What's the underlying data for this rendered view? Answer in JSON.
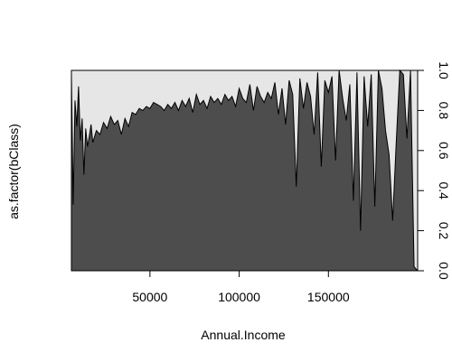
{
  "chart_data": {
    "type": "area",
    "title": "",
    "xlabel": "Annual.Income",
    "ylabel": "as.factor(bClass)",
    "xlim": [
      6000,
      200000
    ],
    "ylim": [
      0,
      1
    ],
    "x_ticks": [
      50000,
      100000,
      150000
    ],
    "x_tick_labels": [
      "50000",
      "100000",
      "150000"
    ],
    "y_ticks": [
      0,
      0.2,
      0.4,
      0.6,
      0.8,
      1
    ],
    "y_tick_labels": [
      "0.0",
      "0.2",
      "0.4",
      "0.6",
      "0.8",
      "1.0"
    ],
    "grid": false,
    "legend": "none",
    "colors": {
      "lower": "#4d4d4d",
      "upper": "#e6e6e6",
      "outline": "#000000"
    },
    "series": [
      {
        "x": [
          6000,
          7000,
          8000,
          9000,
          10000,
          11000,
          12000,
          13000,
          14000,
          15000,
          16000,
          17000,
          18000,
          20000,
          22000,
          24000,
          26000,
          28000,
          30000,
          32000,
          34000,
          36000,
          38000,
          40000,
          42000,
          44000,
          46000,
          48000,
          50000,
          52000,
          54000,
          56000,
          58000,
          60000,
          62000,
          64000,
          66000,
          68000,
          70000,
          72000,
          74000,
          76000,
          78000,
          80000,
          82000,
          84000,
          86000,
          88000,
          90000,
          92000,
          94000,
          96000,
          98000,
          100000,
          102000,
          104000,
          106000,
          108000,
          110000,
          112000,
          114000,
          116000,
          118000,
          120000,
          122000,
          124000,
          126000,
          128000,
          130000,
          132000,
          134000,
          136000,
          138000,
          140000,
          142000,
          144000,
          146000,
          148000,
          150000,
          152000,
          154000,
          156000,
          158000,
          160000,
          162000,
          164000,
          166000,
          168000,
          170000,
          172000,
          174000,
          176000,
          178000,
          180000,
          182000,
          184000,
          186000,
          188000,
          190000,
          192000,
          194000,
          196000,
          198000,
          200000
        ],
        "values": [
          0.98,
          0.33,
          0.85,
          0.72,
          0.92,
          0.65,
          0.76,
          0.48,
          0.71,
          0.62,
          0.67,
          0.73,
          0.64,
          0.7,
          0.68,
          0.74,
          0.71,
          0.77,
          0.73,
          0.75,
          0.68,
          0.76,
          0.72,
          0.79,
          0.78,
          0.81,
          0.8,
          0.82,
          0.81,
          0.84,
          0.83,
          0.82,
          0.8,
          0.83,
          0.81,
          0.84,
          0.8,
          0.85,
          0.82,
          0.86,
          0.79,
          0.88,
          0.83,
          0.85,
          0.81,
          0.87,
          0.84,
          0.86,
          0.83,
          0.88,
          0.85,
          0.87,
          0.82,
          0.91,
          0.86,
          0.84,
          0.93,
          0.8,
          0.92,
          0.87,
          0.84,
          0.89,
          0.86,
          0.94,
          0.78,
          0.91,
          0.73,
          0.95,
          0.88,
          0.42,
          0.96,
          0.81,
          0.94,
          0.87,
          0.68,
          0.99,
          0.52,
          0.95,
          0.89,
          0.97,
          0.55,
          1.0,
          0.86,
          0.75,
          0.93,
          0.35,
          0.99,
          0.2,
          0.97,
          0.72,
          0.98,
          0.32,
          1.0,
          0.91,
          0.7,
          0.58,
          0.25,
          0.64,
          1.0,
          0.98,
          0.66,
          1.0,
          0.02,
          0.0
        ]
      }
    ]
  }
}
